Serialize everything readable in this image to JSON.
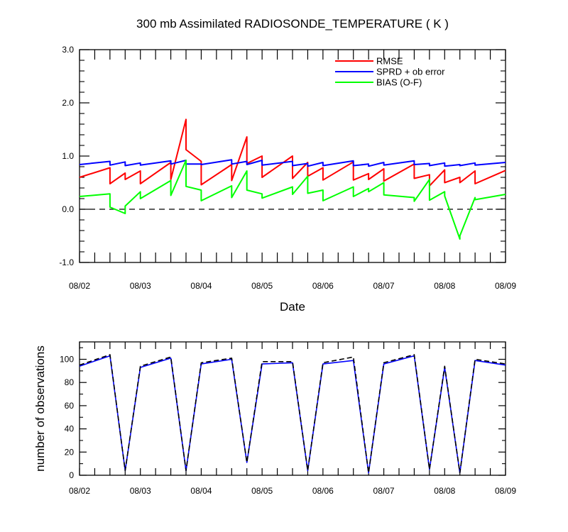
{
  "chart_data": [
    {
      "type": "line",
      "title": "300 mb Assimilated RADIOSONDE_TEMPERATURE ( K )",
      "xlabel": "Date",
      "ylabel": "",
      "xlim": [
        0,
        7
      ],
      "ylim": [
        -1.0,
        3.0
      ],
      "x_ticks": [
        0,
        1,
        2,
        3,
        4,
        5,
        6,
        7
      ],
      "x_tick_labels": [
        "08/02",
        "08/03",
        "08/04",
        "08/05",
        "08/06",
        "08/07",
        "08/08",
        "08/09"
      ],
      "y_ticks": [
        -1.0,
        0.0,
        1.0,
        2.0,
        3.0
      ],
      "y_tick_labels": [
        "-1.0",
        "0.0",
        "1.0",
        "2.0",
        "3.0"
      ],
      "x_unit": "days since 08/02 00Z",
      "zero_line": true,
      "legend_position": "top-right",
      "series": [
        {
          "name": "RMSE",
          "color": "#ff0000",
          "x": [
            0,
            0.5,
            0.5,
            0.75,
            0.75,
            1,
            1,
            1.5,
            1.5,
            1.75,
            1.75,
            2,
            2,
            2.5,
            2.5,
            2.75,
            2.75,
            3,
            3,
            3.5,
            3.5,
            3.75,
            3.75,
            4,
            4,
            4.5,
            4.5,
            4.75,
            4.75,
            5,
            5,
            5.5,
            5.5,
            5.75,
            5.75,
            6,
            6,
            6.25,
            6.25,
            6.5,
            6.5,
            7
          ],
          "values": [
            0.6,
            0.78,
            0.48,
            0.68,
            0.56,
            0.72,
            0.48,
            0.88,
            0.56,
            1.69,
            1.12,
            0.9,
            0.46,
            0.84,
            0.54,
            1.36,
            0.86,
            1.0,
            0.6,
            1.0,
            0.58,
            0.88,
            0.62,
            0.78,
            0.55,
            0.89,
            0.55,
            0.67,
            0.56,
            0.76,
            0.53,
            0.85,
            0.58,
            0.65,
            0.44,
            0.74,
            0.5,
            0.6,
            0.5,
            0.72,
            0.48,
            0.73
          ]
        },
        {
          "name": "SPRD + ob error",
          "color": "#0000ff",
          "x": [
            0,
            0.5,
            0.5,
            0.75,
            0.75,
            1,
            1,
            1.5,
            1.5,
            1.75,
            1.75,
            2,
            2,
            2.5,
            2.5,
            2.75,
            2.75,
            3,
            3,
            3.5,
            3.5,
            3.75,
            3.75,
            4,
            4,
            4.5,
            4.5,
            4.75,
            4.75,
            5,
            5,
            5.5,
            5.5,
            5.75,
            5.75,
            6,
            6,
            6.25,
            6.25,
            6.5,
            6.5,
            7
          ],
          "values": [
            0.84,
            0.9,
            0.83,
            0.89,
            0.82,
            0.87,
            0.83,
            0.91,
            0.85,
            0.92,
            0.85,
            0.85,
            0.84,
            0.93,
            0.85,
            0.9,
            0.84,
            0.92,
            0.83,
            0.9,
            0.82,
            0.86,
            0.81,
            0.88,
            0.82,
            0.91,
            0.82,
            0.85,
            0.81,
            0.88,
            0.83,
            0.91,
            0.84,
            0.86,
            0.82,
            0.87,
            0.81,
            0.84,
            0.82,
            0.87,
            0.83,
            0.88
          ]
        },
        {
          "name": "BIAS (O-F)",
          "color": "#00ff00",
          "x": [
            0,
            0.5,
            0.5,
            0.75,
            0.75,
            1,
            1,
            1.5,
            1.5,
            1.75,
            1.75,
            2,
            2,
            2.5,
            2.5,
            2.75,
            2.75,
            3,
            3,
            3.5,
            3.5,
            3.75,
            3.75,
            4,
            4,
            4.5,
            4.5,
            4.75,
            4.75,
            5,
            5,
            5.5,
            5.5,
            5.75,
            5.75,
            6,
            6,
            6.25,
            6.25,
            6.5,
            6.5,
            7
          ],
          "values": [
            0.24,
            0.29,
            0.04,
            -0.08,
            0.06,
            0.33,
            0.2,
            0.54,
            0.26,
            0.92,
            0.43,
            0.36,
            0.16,
            0.44,
            0.22,
            0.72,
            0.36,
            0.29,
            0.21,
            0.42,
            0.28,
            0.62,
            0.3,
            0.36,
            0.16,
            0.42,
            0.24,
            0.39,
            0.33,
            0.5,
            0.27,
            0.22,
            0.15,
            0.56,
            0.17,
            0.33,
            0.25,
            -0.56,
            -0.5,
            0.22,
            0.18,
            0.28
          ]
        }
      ]
    },
    {
      "type": "line",
      "title": "",
      "xlabel": "",
      "ylabel": "number of observations",
      "xlim": [
        0,
        7
      ],
      "ylim": [
        0,
        115
      ],
      "x_ticks": [
        0,
        1,
        2,
        3,
        4,
        5,
        6,
        7
      ],
      "x_tick_labels": [
        "08/02",
        "08/03",
        "08/04",
        "08/05",
        "08/06",
        "08/07",
        "08/08",
        "08/09"
      ],
      "y_ticks": [
        0,
        20,
        40,
        60,
        80,
        100
      ],
      "y_tick_labels": [
        "0",
        "20",
        "40",
        "60",
        "80",
        "100"
      ],
      "x_unit": "days since 08/02 00Z",
      "series": [
        {
          "name": "",
          "color": "#0000ff",
          "dash": "solid",
          "x": [
            0,
            0.5,
            0.75,
            1,
            1.5,
            1.75,
            2,
            2.5,
            2.75,
            3,
            3.5,
            3.75,
            4,
            4.5,
            4.75,
            5,
            5.5,
            5.75,
            6,
            6.25,
            6.5,
            7
          ],
          "values": [
            94,
            103,
            4,
            93,
            101,
            4,
            96,
            100,
            11,
            96,
            97,
            4,
            96,
            99,
            2,
            96,
            103,
            5,
            93,
            2,
            99,
            95
          ]
        },
        {
          "name": "",
          "color": "#000000",
          "dash": "dashed",
          "x": [
            0,
            0.5,
            0.75,
            1,
            1.5,
            1.75,
            2,
            2.5,
            2.75,
            3,
            3.5,
            3.75,
            4,
            4.5,
            4.75,
            5,
            5.5,
            5.75,
            6,
            6.25,
            6.5,
            7
          ],
          "values": [
            95,
            104,
            4,
            94,
            102,
            4,
            97,
            101,
            11,
            98,
            98,
            4,
            97,
            102,
            2,
            97,
            104,
            5,
            94,
            2,
            100,
            96
          ]
        }
      ]
    }
  ]
}
